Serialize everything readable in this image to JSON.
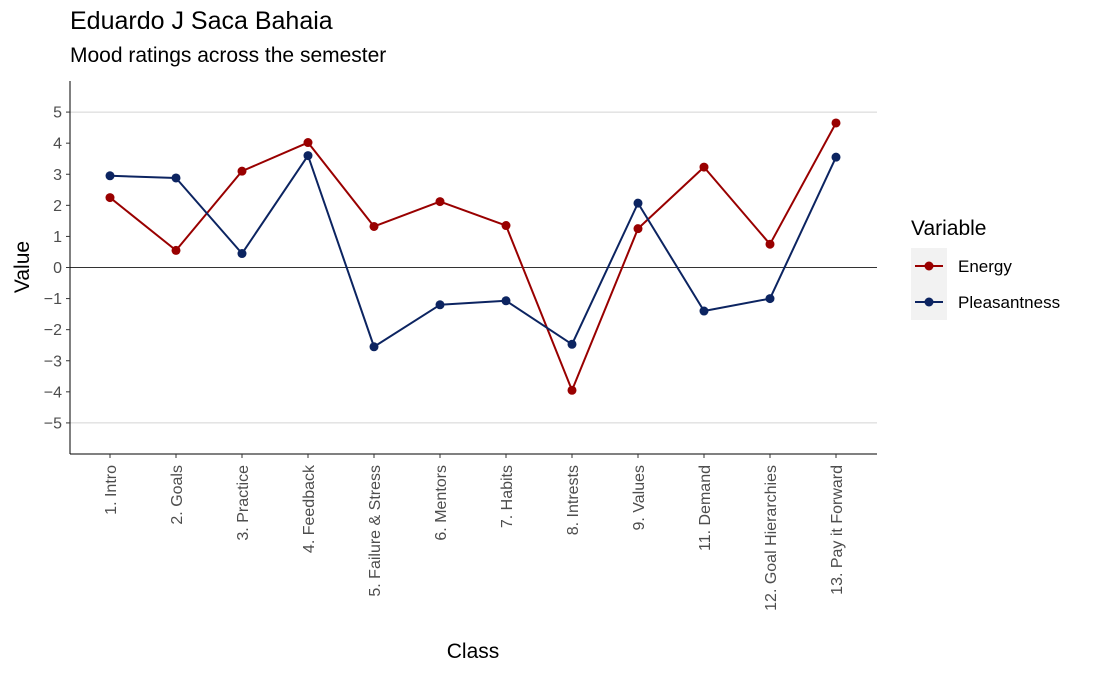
{
  "chart_data": {
    "type": "line",
    "title": "Eduardo J Saca Bahaia",
    "subtitle": "Mood ratings across the semester",
    "xlabel": "Class",
    "ylabel": "Value",
    "ylim": [
      -6,
      6
    ],
    "yticks": [
      -5,
      -4,
      -3,
      -2,
      -1,
      0,
      1,
      2,
      3,
      4,
      5
    ],
    "grid": "major y gridlines at 5 and -5; horizontal reference line at 0",
    "legend_position": "right",
    "legend_title": "Variable",
    "categories": [
      "1. Intro",
      "2. Goals",
      "3. Practice",
      "4. Feedback",
      "5. Failure & Stress",
      "6. Mentors",
      "7. Habits",
      "8. Intrests",
      "9. Values",
      "11. Demand",
      "12. Goal Hierarchies",
      "13. Pay it Forward"
    ],
    "series": [
      {
        "name": "Energy",
        "color": "#990000",
        "values": [
          2.25,
          0.55,
          3.1,
          4.02,
          1.32,
          2.12,
          1.35,
          -3.95,
          1.25,
          3.23,
          0.75,
          4.65
        ]
      },
      {
        "name": "Pleasantness",
        "color": "#0c2461",
        "values": [
          2.95,
          2.88,
          0.45,
          3.6,
          -2.55,
          -1.2,
          -1.07,
          -2.47,
          2.07,
          -1.4,
          -1.0,
          3.55
        ]
      }
    ]
  }
}
